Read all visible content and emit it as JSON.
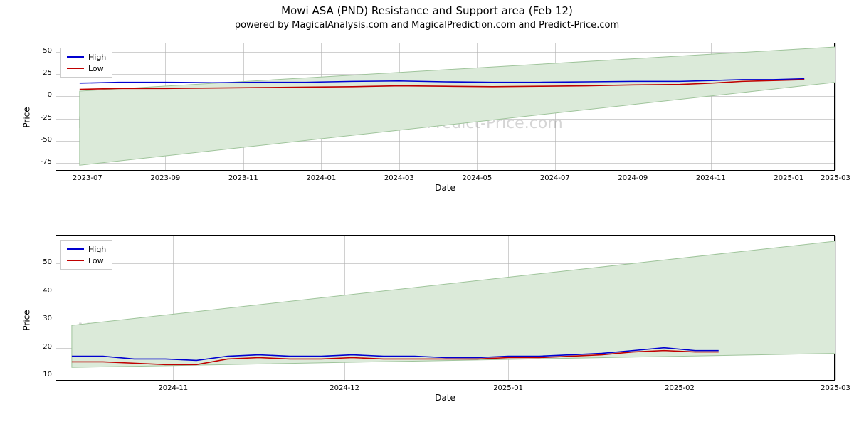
{
  "title": "Mowi ASA (PND) Resistance and Support area (Feb 12)",
  "subtitle": "powered by MagicalAnalysis.com and MagicalPrediction.com and Predict-Price.com",
  "watermark_text": "MagicalAnalysis.com    MagicalPrediction.com    Predict-Price.com",
  "legend": {
    "high_label": "High",
    "low_label": "Low",
    "high_color": "#0000d0",
    "low_color": "#c00000"
  },
  "colors": {
    "area_fill": "#dbead9",
    "area_stroke": "#9fc49b",
    "grid": "#b0b0b0",
    "border": "#000000",
    "bg": "#ffffff",
    "text": "#000000",
    "watermark": "#888888"
  },
  "chart1": {
    "type": "line",
    "ylabel": "Price",
    "xlabel": "Date",
    "ylim": [
      -85,
      60
    ],
    "yticks": [
      -75,
      -50,
      -25,
      0,
      25,
      50
    ],
    "xlim": [
      0,
      100
    ],
    "xticks": [
      {
        "pos": 4,
        "label": "2023-07"
      },
      {
        "pos": 14,
        "label": "2023-09"
      },
      {
        "pos": 24,
        "label": "2023-11"
      },
      {
        "pos": 34,
        "label": "2024-01"
      },
      {
        "pos": 44,
        "label": "2024-03"
      },
      {
        "pos": 54,
        "label": "2024-05"
      },
      {
        "pos": 64,
        "label": "2024-07"
      },
      {
        "pos": 74,
        "label": "2024-09"
      },
      {
        "pos": 84,
        "label": "2024-11"
      },
      {
        "pos": 94,
        "label": "2025-01"
      },
      {
        "pos": 100,
        "label": "2025-03"
      }
    ],
    "area": [
      {
        "x": 3,
        "low": -78,
        "high": 6
      },
      {
        "x": 100,
        "low": 16,
        "high": 56
      }
    ],
    "series": {
      "high": [
        {
          "x": 3,
          "y": 15
        },
        {
          "x": 8,
          "y": 16
        },
        {
          "x": 14,
          "y": 16
        },
        {
          "x": 20,
          "y": 15.5
        },
        {
          "x": 26,
          "y": 16
        },
        {
          "x": 32,
          "y": 16
        },
        {
          "x": 38,
          "y": 17
        },
        {
          "x": 44,
          "y": 17.5
        },
        {
          "x": 50,
          "y": 16.5
        },
        {
          "x": 56,
          "y": 16
        },
        {
          "x": 62,
          "y": 16
        },
        {
          "x": 68,
          "y": 16.5
        },
        {
          "x": 74,
          "y": 17
        },
        {
          "x": 80,
          "y": 17
        },
        {
          "x": 84,
          "y": 18
        },
        {
          "x": 88,
          "y": 19
        },
        {
          "x": 92,
          "y": 19
        },
        {
          "x": 96,
          "y": 20
        }
      ],
      "low": [
        {
          "x": 3,
          "y": 8
        },
        {
          "x": 8,
          "y": 9
        },
        {
          "x": 14,
          "y": 9
        },
        {
          "x": 20,
          "y": 9.5
        },
        {
          "x": 26,
          "y": 10
        },
        {
          "x": 32,
          "y": 10.5
        },
        {
          "x": 38,
          "y": 11
        },
        {
          "x": 44,
          "y": 12
        },
        {
          "x": 50,
          "y": 11.5
        },
        {
          "x": 56,
          "y": 11
        },
        {
          "x": 62,
          "y": 11.5
        },
        {
          "x": 68,
          "y": 12
        },
        {
          "x": 74,
          "y": 13
        },
        {
          "x": 80,
          "y": 13.5
        },
        {
          "x": 84,
          "y": 15
        },
        {
          "x": 88,
          "y": 17
        },
        {
          "x": 92,
          "y": 18
        },
        {
          "x": 96,
          "y": 19
        }
      ]
    },
    "line_width": 1.6
  },
  "chart2": {
    "type": "line",
    "ylabel": "Price",
    "xlabel": "Date",
    "ylim": [
      8,
      60
    ],
    "yticks": [
      10,
      20,
      30,
      40,
      50
    ],
    "xlim": [
      0,
      100
    ],
    "xticks": [
      {
        "pos": 15,
        "label": "2024-11"
      },
      {
        "pos": 37,
        "label": "2024-12"
      },
      {
        "pos": 58,
        "label": "2025-01"
      },
      {
        "pos": 80,
        "label": "2025-02"
      },
      {
        "pos": 100,
        "label": "2025-03"
      }
    ],
    "area": [
      {
        "x": 2,
        "low": 13,
        "high": 28
      },
      {
        "x": 100,
        "low": 18,
        "high": 58
      }
    ],
    "series": {
      "high": [
        {
          "x": 2,
          "y": 17
        },
        {
          "x": 6,
          "y": 17
        },
        {
          "x": 10,
          "y": 16
        },
        {
          "x": 14,
          "y": 16
        },
        {
          "x": 18,
          "y": 15.5
        },
        {
          "x": 22,
          "y": 17
        },
        {
          "x": 26,
          "y": 17.5
        },
        {
          "x": 30,
          "y": 17
        },
        {
          "x": 34,
          "y": 17
        },
        {
          "x": 38,
          "y": 17.5
        },
        {
          "x": 42,
          "y": 17
        },
        {
          "x": 46,
          "y": 17
        },
        {
          "x": 50,
          "y": 16.5
        },
        {
          "x": 54,
          "y": 16.5
        },
        {
          "x": 58,
          "y": 17
        },
        {
          "x": 62,
          "y": 17
        },
        {
          "x": 66,
          "y": 17.5
        },
        {
          "x": 70,
          "y": 18
        },
        {
          "x": 74,
          "y": 19
        },
        {
          "x": 78,
          "y": 20
        },
        {
          "x": 82,
          "y": 19
        },
        {
          "x": 85,
          "y": 19
        }
      ],
      "low": [
        {
          "x": 2,
          "y": 15
        },
        {
          "x": 6,
          "y": 15
        },
        {
          "x": 10,
          "y": 14.5
        },
        {
          "x": 14,
          "y": 14
        },
        {
          "x": 18,
          "y": 14
        },
        {
          "x": 22,
          "y": 16
        },
        {
          "x": 26,
          "y": 16.5
        },
        {
          "x": 30,
          "y": 16
        },
        {
          "x": 34,
          "y": 16
        },
        {
          "x": 38,
          "y": 16.5
        },
        {
          "x": 42,
          "y": 16
        },
        {
          "x": 46,
          "y": 16
        },
        {
          "x": 50,
          "y": 16
        },
        {
          "x": 54,
          "y": 16
        },
        {
          "x": 58,
          "y": 16.5
        },
        {
          "x": 62,
          "y": 16.5
        },
        {
          "x": 66,
          "y": 17
        },
        {
          "x": 70,
          "y": 17.5
        },
        {
          "x": 74,
          "y": 18.5
        },
        {
          "x": 78,
          "y": 19
        },
        {
          "x": 82,
          "y": 18.5
        },
        {
          "x": 85,
          "y": 18.5
        }
      ]
    },
    "line_width": 1.6
  }
}
